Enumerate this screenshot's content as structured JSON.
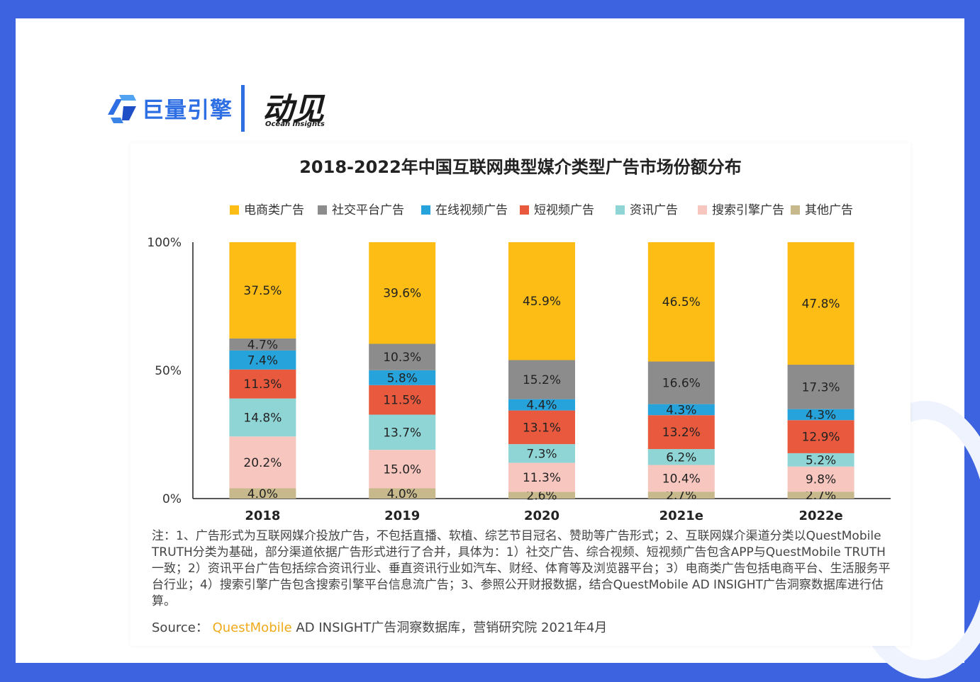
{
  "logo": {
    "brand_cn": "巨量引擎",
    "brand2_cn": "动见",
    "brand2_en": "Ocean Insights"
  },
  "colors": {
    "background_frame": "#3d63e0",
    "brand_blue": "#2f6fe4",
    "source_brand": "#f0a91a"
  },
  "chart_data": {
    "type": "bar",
    "stacked": true,
    "title": "2018-2022年中国互联网典型媒介类型广告市场份额分布",
    "categories": [
      "2018",
      "2019",
      "2020",
      "2021e",
      "2022e"
    ],
    "y_ticks": [
      "0%",
      "50%",
      "100%"
    ],
    "ylim": [
      0,
      100
    ],
    "legend_position": "top",
    "grid": false,
    "series": [
      {
        "name": "其他广告",
        "color": "#c8b98c",
        "values": [
          4.0,
          4.0,
          2.6,
          2.7,
          2.7
        ]
      },
      {
        "name": "搜索引擎广告",
        "color": "#f7c6bf",
        "values": [
          20.2,
          15.0,
          11.3,
          10.4,
          9.8
        ]
      },
      {
        "name": "资讯广告",
        "color": "#8fd5d5",
        "values": [
          14.8,
          13.7,
          7.3,
          6.2,
          5.2
        ]
      },
      {
        "name": "短视频广告",
        "color": "#e8593e",
        "values": [
          11.3,
          11.5,
          13.1,
          13.2,
          12.9
        ]
      },
      {
        "name": "在线视频广告",
        "color": "#26a3db",
        "values": [
          7.4,
          5.8,
          4.4,
          4.3,
          4.3
        ]
      },
      {
        "name": "社交平台广告",
        "color": "#8c8c8c",
        "values": [
          4.7,
          10.3,
          15.2,
          16.6,
          17.3
        ]
      },
      {
        "name": "电商类广告",
        "color": "#fdbd14",
        "values": [
          37.5,
          39.6,
          45.9,
          46.5,
          47.8
        ]
      }
    ],
    "legend_order": [
      "电商类广告",
      "社交平台广告",
      "在线视频广告",
      "短视频广告",
      "资讯广告",
      "搜索引擎广告",
      "其他广告"
    ],
    "data_labels": [
      [
        "4.0%",
        "20.2%",
        "14.8%",
        "11.3%",
        "7.4%",
        "4.7%",
        "37.5%"
      ],
      [
        "4.0%",
        "15.0%",
        "13.7%",
        "11.5%",
        "5.8%",
        "10.3%",
        "39.6%"
      ],
      [
        "2.6%",
        "11.3%",
        "7.3%",
        "13.1%",
        "4.4%",
        "15.2%",
        "45.9%"
      ],
      [
        "2.7%",
        "10.4%",
        "6.2%",
        "13.2%",
        "4.3%",
        "16.6%",
        "46.5%"
      ],
      [
        "2.7%",
        "9.8%",
        "5.2%",
        "12.9%",
        "4.3%",
        "17.3%",
        "47.8%"
      ]
    ]
  },
  "note": "注：1、广告形式为互联网媒介投放广告，不包括直播、软植、综艺节目冠名、赞助等广告形式；2、互联网媒介渠道分类以QuestMobile TRUTH分类为基础，部分渠道依据广告形式进行了合并，具体为：1）社交广告、综合视频、短视频广告包含APP与QuestMobile TRUTH一致；2）资讯平台广告包括综合资讯行业、垂直资讯行业如汽车、财经、体育等及浏览器平台；3）电商类广告包括电商平台、生活服务平台行业；4）搜索引擎广告包含搜索引擎平台信息流广告；3、参照公开财报数据，结合QuestMobile AD INSIGHT广告洞察数据库进行估算。",
  "source": {
    "label": "Source：",
    "brand": "QuestMobile",
    "rest": " AD INSIGHT广告洞察数据库，营销研究院 2021年4月"
  }
}
